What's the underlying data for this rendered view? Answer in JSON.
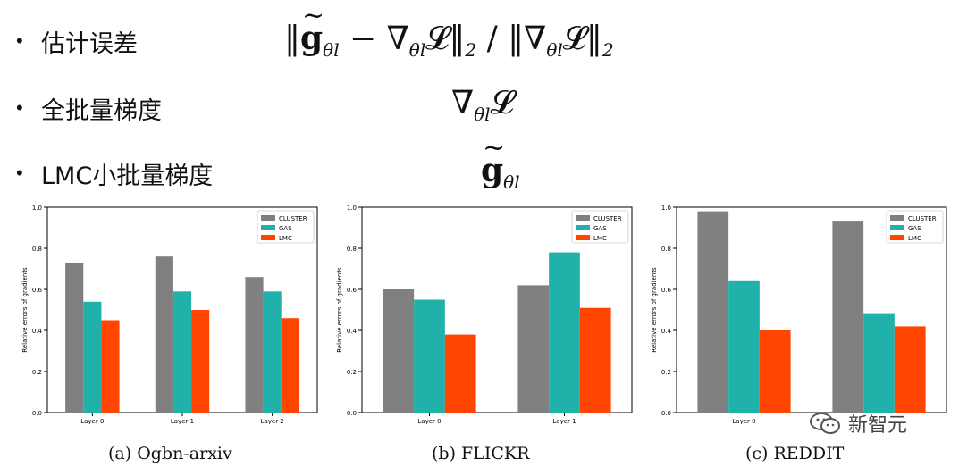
{
  "bullets": [
    {
      "label": "估计误差"
    },
    {
      "label": "全批量梯度"
    },
    {
      "label": "LMC小批量梯度"
    }
  ],
  "bullet_char": "•",
  "formulas": {
    "error_prefix": "‖",
    "error_g": "g",
    "error_sub": "θl",
    "error_middle": " − ∇",
    "error_sub2": "θl",
    "error_loss": "𝓛‖",
    "error_norm2": "2",
    "error_slash": " / ‖∇",
    "error_sub3": "θl",
    "error_loss2": "𝓛‖",
    "error_norm2b": "2",
    "full_nabla": "∇",
    "full_sub": "θl",
    "full_loss": "𝓛",
    "mini_g": "g",
    "mini_sub": "θl"
  },
  "watermark": "新智元",
  "colors": {
    "CLUSTER": "#808080",
    "GAS": "#20b2aa",
    "LMC": "#ff4500"
  },
  "chart_data": [
    {
      "type": "bar",
      "caption": "(a) Ogbn-arxiv",
      "categories": [
        "Layer 0",
        "Layer 1",
        "Layer 2"
      ],
      "series": [
        {
          "name": "CLUSTER",
          "values": [
            0.73,
            0.76,
            0.66
          ]
        },
        {
          "name": "GAS",
          "values": [
            0.54,
            0.59,
            0.59
          ]
        },
        {
          "name": "LMC",
          "values": [
            0.45,
            0.5,
            0.46
          ]
        }
      ],
      "ylabel": "Relative errors of gradients",
      "ylim": [
        0,
        1.0
      ],
      "yticks": [
        "0.0",
        "0.2",
        "0.4",
        "0.6",
        "0.8",
        "1.0"
      ],
      "legend": "top-right"
    },
    {
      "type": "bar",
      "caption": "(b) FLICKR",
      "categories": [
        "Layer 0",
        "Layer 1"
      ],
      "series": [
        {
          "name": "CLUSTER",
          "values": [
            0.6,
            0.62
          ]
        },
        {
          "name": "GAS",
          "values": [
            0.55,
            0.78
          ]
        },
        {
          "name": "LMC",
          "values": [
            0.38,
            0.51
          ]
        }
      ],
      "ylabel": "Relative errors of gradients",
      "ylim": [
        0,
        1.0
      ],
      "yticks": [
        "0.0",
        "0.2",
        "0.4",
        "0.6",
        "0.8",
        "1.0"
      ],
      "legend": "top-right"
    },
    {
      "type": "bar",
      "caption": "(c) REDDIT",
      "categories": [
        "Layer 0",
        ""
      ],
      "series": [
        {
          "name": "CLUSTER",
          "values": [
            0.98,
            0.93
          ]
        },
        {
          "name": "GAS",
          "values": [
            0.64,
            0.48
          ]
        },
        {
          "name": "LMC",
          "values": [
            0.4,
            0.42
          ]
        }
      ],
      "ylabel": "Relative errors of gradients",
      "ylim": [
        0,
        1.0
      ],
      "yticks": [
        "0.0",
        "0.2",
        "0.4",
        "0.6",
        "0.8",
        "1.0"
      ],
      "legend": "top-right"
    }
  ]
}
